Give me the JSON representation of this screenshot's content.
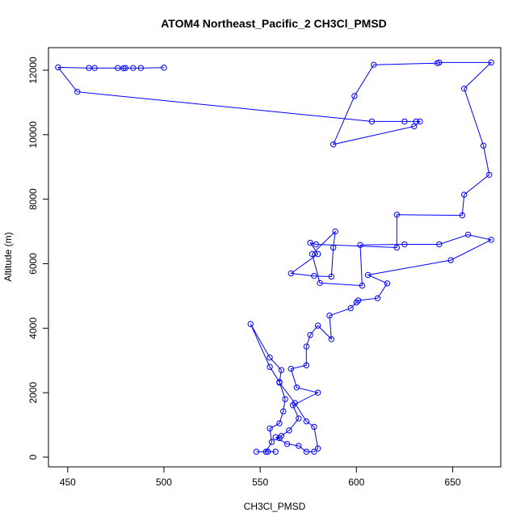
{
  "chart_data": {
    "type": "line",
    "title": "ATOM4 Northeast_Pacific_2 CH3Cl_PMSD",
    "xlabel": "CH3Cl_PMSD",
    "ylabel": "Altitude (m)",
    "xlim": [
      440,
      675
    ],
    "ylim": [
      -300,
      12700
    ],
    "xticks": [
      450,
      500,
      550,
      600,
      650
    ],
    "yticks": [
      0,
      2000,
      4000,
      6000,
      8000,
      10000,
      12000
    ],
    "grid": false,
    "series_color": "#0000ff",
    "marker": "open-circle",
    "series": [
      {
        "points": [
          [
            500,
            12080
          ],
          [
            488,
            12070
          ],
          [
            484,
            12070
          ],
          [
            480,
            12070
          ],
          [
            479,
            12060
          ],
          [
            476,
            12070
          ],
          [
            464,
            12070
          ],
          [
            461,
            12070
          ],
          [
            445,
            12090
          ],
          [
            455,
            11330
          ],
          [
            608,
            10410
          ],
          [
            625,
            10410
          ],
          [
            631,
            10410
          ],
          [
            633,
            10410
          ],
          [
            630,
            10260
          ],
          [
            588,
            9700
          ],
          [
            599,
            11200
          ],
          [
            609,
            12170
          ],
          [
            642,
            12220
          ],
          [
            643,
            12240
          ],
          [
            670,
            12240
          ],
          [
            656,
            11430
          ],
          [
            666,
            9660
          ],
          [
            669,
            8760
          ],
          [
            656,
            8140
          ],
          [
            655,
            7500
          ],
          [
            621,
            7520
          ],
          [
            621,
            6500
          ],
          [
            579,
            6600
          ],
          [
            576,
            6650
          ],
          [
            580,
            6300
          ],
          [
            566,
            5700
          ],
          [
            578,
            5620
          ],
          [
            587,
            5600
          ],
          [
            588,
            6500
          ],
          [
            589,
            7000
          ],
          [
            577,
            6300
          ],
          [
            581,
            5400
          ],
          [
            603,
            5320
          ],
          [
            602,
            6580
          ],
          [
            625,
            6600
          ],
          [
            643,
            6600
          ],
          [
            658,
            6900
          ],
          [
            670,
            6740
          ],
          [
            649,
            6110
          ],
          [
            606,
            5650
          ],
          [
            616,
            5390
          ],
          [
            611,
            4930
          ],
          [
            601,
            4860
          ],
          [
            600,
            4800
          ],
          [
            597,
            4620
          ],
          [
            586,
            4390
          ],
          [
            587,
            3660
          ],
          [
            580,
            4080
          ],
          [
            576,
            3790
          ],
          [
            574,
            3430
          ],
          [
            574,
            2850
          ],
          [
            566,
            2740
          ],
          [
            569,
            2160
          ],
          [
            580,
            2000
          ],
          [
            567,
            1610
          ],
          [
            570,
            1200
          ],
          [
            565,
            830
          ],
          [
            561,
            660
          ],
          [
            560,
            590
          ],
          [
            558,
            620
          ],
          [
            564,
            410
          ],
          [
            570,
            350
          ],
          [
            574,
            170
          ],
          [
            578,
            170
          ],
          [
            580,
            270
          ],
          [
            578,
            940
          ],
          [
            574,
            1110
          ],
          [
            568,
            1680
          ],
          [
            560,
            2310
          ],
          [
            561,
            2700
          ],
          [
            555,
            3090
          ],
          [
            545,
            4130
          ],
          [
            555,
            2800
          ],
          [
            560,
            2330
          ],
          [
            563,
            1800
          ],
          [
            562,
            1420
          ],
          [
            560,
            1050
          ],
          [
            555,
            890
          ],
          [
            556,
            470
          ],
          [
            553,
            170
          ],
          [
            548,
            170
          ],
          [
            554,
            170
          ],
          [
            558,
            170
          ]
        ]
      }
    ]
  }
}
